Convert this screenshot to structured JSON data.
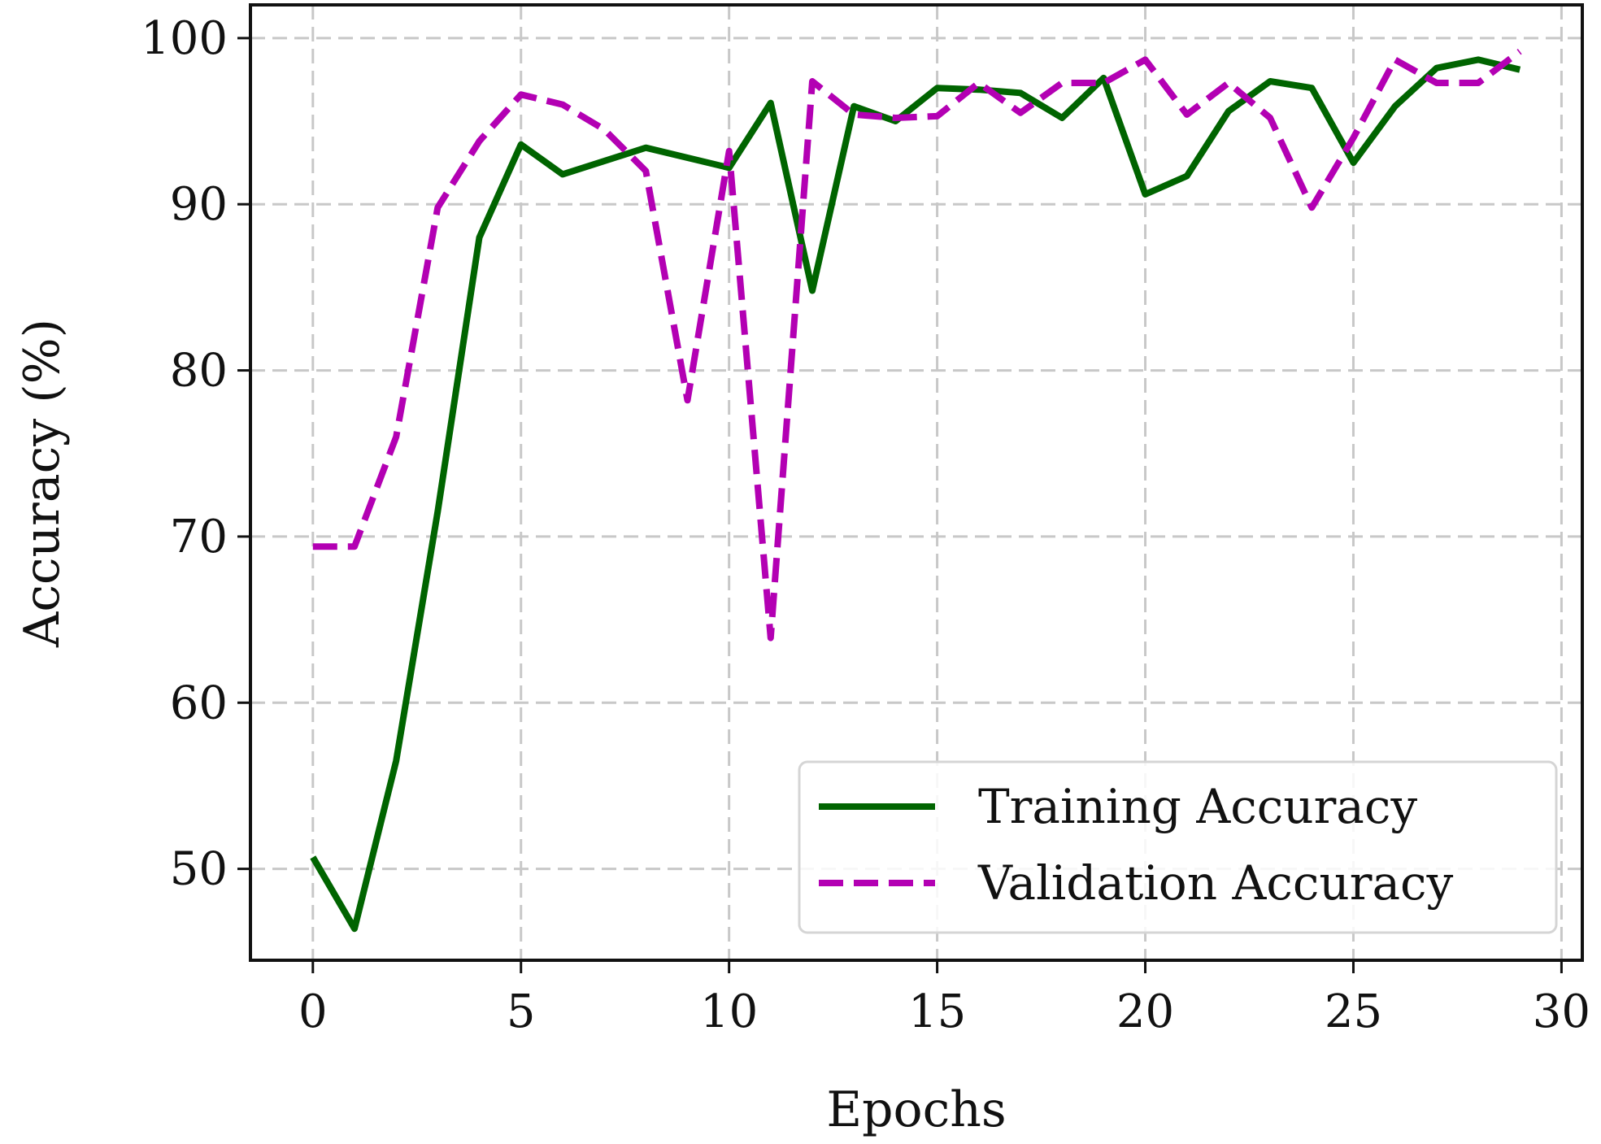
{
  "chart_data": {
    "type": "line",
    "xlabel": "Epochs",
    "ylabel": "Accuracy (%)",
    "xlim": [
      -1.5,
      30.5
    ],
    "ylim": [
      44.5,
      102.0
    ],
    "xticks": [
      0,
      5,
      10,
      15,
      20,
      25,
      30
    ],
    "yticks": [
      50,
      60,
      70,
      80,
      90,
      100
    ],
    "xtick_labels": [
      "0",
      "5",
      "10",
      "15",
      "20",
      "25",
      "30"
    ],
    "ytick_labels": [
      "50",
      "60",
      "70",
      "80",
      "90",
      "100"
    ],
    "grid": true,
    "legend": "lower-right",
    "x": [
      0,
      1,
      2,
      3,
      4,
      5,
      6,
      7,
      8,
      9,
      10,
      11,
      12,
      13,
      14,
      15,
      16,
      17,
      18,
      19,
      20,
      21,
      22,
      23,
      24,
      25,
      26,
      27,
      28,
      29
    ],
    "series": [
      {
        "name": "Training Accuracy",
        "color": "#006400",
        "style": "solid",
        "values": [
          50.7,
          46.4,
          56.5,
          71.5,
          88.0,
          93.6,
          91.8,
          92.6,
          93.4,
          92.8,
          92.2,
          96.1,
          84.8,
          95.9,
          95.0,
          97.0,
          96.9,
          96.7,
          95.2,
          97.6,
          90.6,
          91.7,
          95.6,
          97.4,
          97.0,
          92.5,
          95.9,
          98.2,
          98.7,
          98.1
        ]
      },
      {
        "name": "Validation Accuracy",
        "color": "#b300b3",
        "style": "dashed",
        "values": [
          69.4,
          69.4,
          76.0,
          89.8,
          93.8,
          96.6,
          96.0,
          94.5,
          92.0,
          78.2,
          93.2,
          63.9,
          97.4,
          95.4,
          95.2,
          95.3,
          97.3,
          95.5,
          97.3,
          97.3,
          98.7,
          95.4,
          97.3,
          95.2,
          89.8,
          94.0,
          98.7,
          97.3,
          97.3,
          99.2
        ]
      }
    ]
  }
}
